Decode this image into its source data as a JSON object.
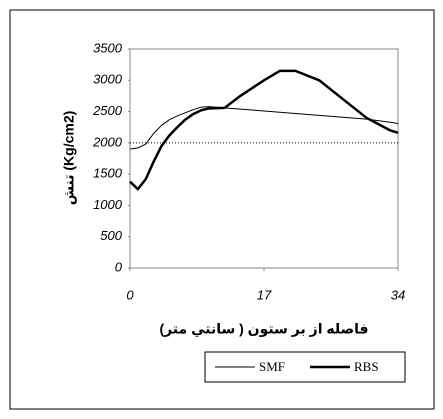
{
  "chart_data": {
    "type": "line",
    "ylabel": "تنش (Kg/cm2)",
    "xlabel": "فاصله از بر ستون ( سانتي متر)",
    "x": [
      0,
      1,
      2,
      3,
      4,
      5,
      6,
      7,
      8,
      9,
      10,
      12,
      14,
      17,
      19,
      21,
      24,
      27,
      30,
      33,
      34
    ],
    "series": [
      {
        "name": "SMF",
        "color": "#000000",
        "linewidth": 1,
        "values": [
          1900,
          1920,
          1980,
          2150,
          2280,
          2370,
          2430,
          2480,
          2530,
          2570,
          2580,
          2560,
          2540,
          2510,
          2490,
          2470,
          2440,
          2410,
          2380,
          2330,
          2310
        ]
      },
      {
        "name": "RBS",
        "color": "#000000",
        "linewidth": 2.5,
        "values": [
          1380,
          1260,
          1420,
          1700,
          1950,
          2120,
          2250,
          2370,
          2460,
          2520,
          2550,
          2560,
          2750,
          3000,
          3150,
          3150,
          3000,
          2700,
          2400,
          2200,
          2160
        ]
      }
    ],
    "reference_line": 2000,
    "xlim": [
      0,
      34
    ],
    "xticks": [
      0,
      17,
      34
    ],
    "ylim": [
      0,
      3500
    ],
    "yticks": [
      0,
      500,
      1000,
      1500,
      2000,
      2500,
      3000,
      3500
    ]
  }
}
